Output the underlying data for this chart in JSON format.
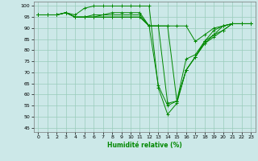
{
  "xlabel": "Humidité relative (%)",
  "xlim": [
    -0.5,
    23.5
  ],
  "ylim": [
    43,
    102
  ],
  "yticks": [
    45,
    50,
    55,
    60,
    65,
    70,
    75,
    80,
    85,
    90,
    95,
    100
  ],
  "xticks": [
    0,
    1,
    2,
    3,
    4,
    5,
    6,
    7,
    8,
    9,
    10,
    11,
    12,
    13,
    14,
    15,
    16,
    17,
    18,
    19,
    20,
    21,
    22,
    23
  ],
  "background_color": "#cce8e8",
  "grid_color": "#99ccbb",
  "line_color": "#008800",
  "series": [
    [
      96,
      96,
      96,
      97,
      96,
      99,
      100,
      100,
      100,
      100,
      100,
      100,
      100,
      63,
      51,
      56,
      71,
      77,
      83,
      87,
      89,
      92,
      92,
      92
    ],
    [
      96,
      96,
      96,
      97,
      95,
      95,
      96,
      96,
      97,
      97,
      97,
      97,
      91,
      64,
      55,
      57,
      71,
      77,
      83,
      86,
      89,
      92,
      92,
      92
    ],
    [
      96,
      96,
      96,
      97,
      95,
      95,
      95,
      96,
      96,
      96,
      96,
      96,
      91,
      91,
      56,
      57,
      76,
      78,
      84,
      87,
      91,
      92,
      92,
      92
    ],
    [
      96,
      96,
      96,
      97,
      95,
      95,
      95,
      95,
      95,
      95,
      95,
      95,
      91,
      91,
      91,
      57,
      71,
      77,
      84,
      89,
      91,
      92,
      92,
      92
    ],
    [
      96,
      96,
      96,
      97,
      95,
      95,
      95,
      95,
      95,
      95,
      95,
      95,
      91,
      91,
      91,
      91,
      91,
      84,
      87,
      90,
      91,
      92,
      92,
      92
    ]
  ],
  "figsize": [
    3.2,
    2.0
  ],
  "dpi": 100
}
